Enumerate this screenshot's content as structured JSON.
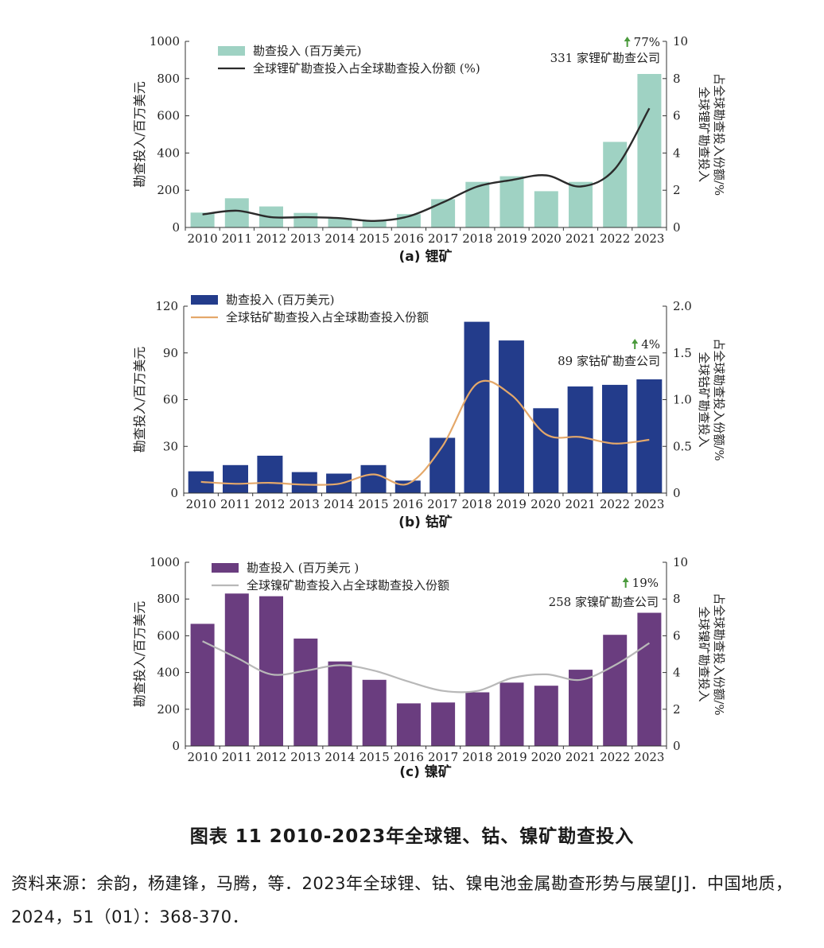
{
  "figure": {
    "title": "图表 11 2010-2023年全球锂、钴、镍矿勘查投入",
    "source": "资料来源：余韵，杨建锋，马腾，等．2023年全球锂、钴、镍电池金属勘查形势与展望[J]．中国地质，2024，51（01）：368-370．"
  },
  "chart_data": [
    {
      "type": "bar+line",
      "caption": "(a) 锂矿",
      "categories": [
        "2010",
        "2011",
        "2012",
        "2013",
        "2014",
        "2015",
        "2016",
        "2017",
        "2018",
        "2019",
        "2020",
        "2021",
        "2022",
        "2023"
      ],
      "series": [
        {
          "name": "勘查投入 (百万美元)",
          "type": "bar",
          "axis": "left",
          "values": [
            80,
            157,
            113,
            78,
            50,
            35,
            72,
            152,
            245,
            275,
            195,
            245,
            460,
            825
          ]
        },
        {
          "name": "全球锂矿勘查投入占全球勘查投入份额 (%)",
          "type": "line",
          "axis": "right",
          "values": [
            0.7,
            0.9,
            0.55,
            0.55,
            0.5,
            0.35,
            0.6,
            1.35,
            2.2,
            2.55,
            2.8,
            2.2,
            3.15,
            6.4
          ]
        }
      ],
      "ylabel_left": "勘查投入/百万美元",
      "ylabel_right": [
        "全球锂矿勘查投入",
        "占全球勘查投入份额/%"
      ],
      "ylim_left": [
        0,
        1000
      ],
      "yticks_left": [
        "0",
        "200",
        "400",
        "600",
        "800",
        "1000"
      ],
      "ylim_right": [
        0,
        10
      ],
      "yticks_right": [
        "0",
        "2",
        "4",
        "6",
        "8",
        "10"
      ],
      "annotation_pct": "77%",
      "annotation_text": "331 家锂矿勘查公司",
      "colors": {
        "bar": "#9fd2c3",
        "line": "#2b2b2b",
        "arrow": "#4a9a3c"
      },
      "legend_position": "top-left"
    },
    {
      "type": "bar+line",
      "caption": "(b) 钴矿",
      "categories": [
        "2010",
        "2011",
        "2012",
        "2013",
        "2014",
        "2015",
        "2016",
        "2017",
        "2018",
        "2019",
        "2020",
        "2021",
        "2022",
        "2023"
      ],
      "series": [
        {
          "name": "勘查投入 (百万美元)",
          "type": "bar",
          "axis": "left",
          "values": [
            14,
            18,
            24,
            13.5,
            12.5,
            18,
            8,
            35.5,
            110,
            98,
            54.5,
            68.5,
            69.5,
            73
          ]
        },
        {
          "name": "全球钴矿勘查投入占全球勘查投入份额",
          "type": "line",
          "axis": "right",
          "values": [
            0.12,
            0.1,
            0.11,
            0.09,
            0.1,
            0.2,
            0.1,
            0.5,
            1.17,
            1.05,
            0.63,
            0.6,
            0.53,
            0.57
          ]
        }
      ],
      "ylabel_left": "勘查投入/百万美元",
      "ylabel_right": [
        "全球钴矿勘查投入",
        "占全球勘查投入份额/%"
      ],
      "ylim_left": [
        0,
        120
      ],
      "yticks_left": [
        "0",
        "30",
        "60",
        "90",
        "120"
      ],
      "ylim_right": [
        0,
        2.0
      ],
      "yticks_right": [
        "0",
        "0.5",
        "1.0",
        "1.5",
        "2.0"
      ],
      "annotation_pct": "4%",
      "annotation_text": "89 家钴矿勘查公司",
      "colors": {
        "bar": "#233c8b",
        "line": "#e4a86a",
        "arrow": "#4a9a3c"
      },
      "legend_position": "top-left"
    },
    {
      "type": "bar+line",
      "caption": "(c) 镍矿",
      "categories": [
        "2010",
        "2011",
        "2012",
        "2013",
        "2014",
        "2015",
        "2016",
        "2017",
        "2018",
        "2019",
        "2020",
        "2021",
        "2022",
        "2023"
      ],
      "series": [
        {
          "name": "勘查投入 (百万美元 )",
          "type": "bar",
          "axis": "left",
          "values": [
            665,
            830,
            815,
            585,
            460,
            360,
            232,
            237,
            292,
            345,
            328,
            415,
            605,
            725
          ]
        },
        {
          "name": "全球镍矿勘查投入占全球勘查投入份额",
          "type": "line",
          "axis": "right",
          "values": [
            5.7,
            4.8,
            3.9,
            4.1,
            4.4,
            4.1,
            3.5,
            3.0,
            3.0,
            3.7,
            3.9,
            3.6,
            4.4,
            5.6
          ]
        }
      ],
      "ylabel_left": "勘查投入/百万美元",
      "ylabel_right": [
        "全球镍矿勘查投入",
        "占全球勘查投入份额/%"
      ],
      "ylim_left": [
        0,
        1000
      ],
      "yticks_left": [
        "0",
        "200",
        "400",
        "600",
        "800",
        "1000"
      ],
      "ylim_right": [
        0,
        10
      ],
      "yticks_right": [
        "0",
        "2",
        "4",
        "6",
        "8",
        "10"
      ],
      "annotation_pct": "19%",
      "annotation_text": "258 家镍矿勘查公司",
      "colors": {
        "bar": "#6a3d7f",
        "line": "#b8b8b8",
        "arrow": "#4a9a3c"
      },
      "legend_position": "top-left"
    }
  ]
}
